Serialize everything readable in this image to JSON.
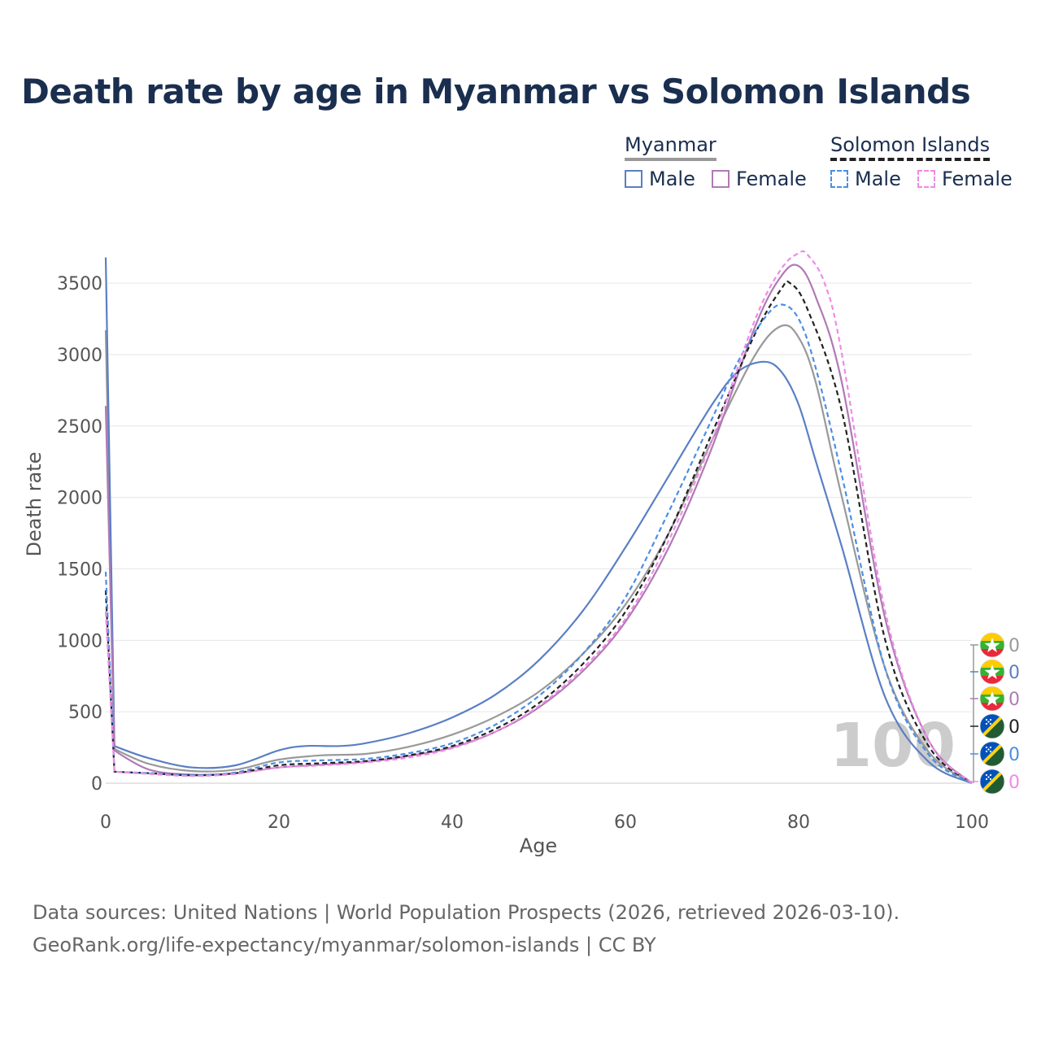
{
  "chart_data": {
    "type": "line",
    "title": "Death rate by age in Myanmar vs Solomon Islands",
    "xlabel": "Age",
    "ylabel": "Death rate",
    "xlim": [
      0,
      100
    ],
    "ylim": [
      0,
      3700
    ],
    "xticks": [
      0,
      20,
      40,
      60,
      80,
      100
    ],
    "yticks": [
      0,
      500,
      1000,
      1500,
      2000,
      2500,
      3000,
      3500
    ],
    "grid": true,
    "watermark": "100",
    "legend": {
      "groups": [
        {
          "title": "Myanmar",
          "color": "#999999",
          "dash": "solid",
          "items": [
            {
              "label": "Male",
              "color": "#5a7fc4",
              "dash": "solid"
            },
            {
              "label": "Female",
              "color": "#b07ab5",
              "dash": "solid"
            }
          ]
        },
        {
          "title": "Solomon Islands",
          "color": "#222222",
          "dash": "dashed",
          "items": [
            {
              "label": "Male",
              "color": "#4a8ee6",
              "dash": "dashed"
            },
            {
              "label": "Female",
              "color": "#f08ae6",
              "dash": "dashed"
            }
          ]
        }
      ]
    },
    "series": [
      {
        "name": "Myanmar Total",
        "color": "#999999",
        "dash": "solid",
        "x": [
          0,
          1,
          5,
          10,
          15,
          20,
          25,
          30,
          35,
          40,
          45,
          50,
          55,
          60,
          65,
          70,
          75,
          78,
          80,
          82,
          85,
          90,
          95,
          100
        ],
        "y": [
          3170,
          240,
          135,
          85,
          95,
          165,
          195,
          205,
          255,
          340,
          465,
          640,
          900,
          1250,
          1750,
          2400,
          3000,
          3200,
          3120,
          2800,
          2000,
          800,
          220,
          0
        ]
      },
      {
        "name": "Myanmar Male",
        "color": "#5a7fc4",
        "dash": "solid",
        "x": [
          0,
          1,
          5,
          10,
          15,
          20,
          23,
          27,
          30,
          35,
          40,
          45,
          50,
          55,
          60,
          65,
          70,
          73,
          76,
          78,
          80,
          82,
          85,
          90,
          95,
          100
        ],
        "y": [
          3680,
          260,
          175,
          110,
          125,
          230,
          260,
          260,
          280,
          350,
          460,
          620,
          860,
          1200,
          1650,
          2150,
          2650,
          2880,
          2950,
          2880,
          2650,
          2250,
          1650,
          600,
          150,
          0
        ]
      },
      {
        "name": "Myanmar Female",
        "color": "#b07ab5",
        "dash": "solid",
        "x": [
          0,
          1,
          5,
          10,
          15,
          20,
          25,
          30,
          35,
          40,
          45,
          50,
          55,
          60,
          65,
          70,
          75,
          78,
          80,
          82,
          85,
          90,
          95,
          100
        ],
        "y": [
          2640,
          230,
          95,
          60,
          70,
          110,
          130,
          150,
          190,
          250,
          360,
          530,
          780,
          1130,
          1650,
          2350,
          3200,
          3550,
          3620,
          3400,
          2800,
          1150,
          300,
          0
        ]
      },
      {
        "name": "Solomon Islands Total",
        "color": "#222222",
        "dash": "dashed",
        "x": [
          0,
          1,
          5,
          10,
          15,
          20,
          25,
          30,
          35,
          40,
          45,
          50,
          55,
          60,
          65,
          70,
          75,
          78,
          79,
          81,
          85,
          90,
          95,
          100
        ],
        "y": [
          1350,
          80,
          70,
          55,
          70,
          125,
          140,
          155,
          195,
          260,
          380,
          560,
          830,
          1200,
          1750,
          2450,
          3150,
          3460,
          3500,
          3320,
          2600,
          1000,
          260,
          0
        ]
      },
      {
        "name": "Solomon Islands Male",
        "color": "#4a8ee6",
        "dash": "dashed",
        "x": [
          0,
          1,
          5,
          10,
          15,
          20,
          25,
          30,
          35,
          40,
          45,
          50,
          55,
          60,
          65,
          70,
          73,
          76,
          78,
          80,
          82,
          85,
          90,
          95,
          100
        ],
        "y": [
          1480,
          80,
          70,
          55,
          75,
          145,
          160,
          170,
          210,
          280,
          410,
          610,
          900,
          1300,
          1900,
          2550,
          2950,
          3250,
          3350,
          3250,
          2900,
          2150,
          800,
          200,
          0
        ]
      },
      {
        "name": "Solomon Islands Female",
        "color": "#f08ae6",
        "dash": "dashed",
        "x": [
          0,
          1,
          5,
          10,
          15,
          20,
          25,
          30,
          35,
          40,
          45,
          50,
          55,
          60,
          65,
          70,
          75,
          78,
          80,
          81,
          83,
          85,
          90,
          95,
          100
        ],
        "y": [
          1200,
          80,
          65,
          50,
          65,
          110,
          125,
          145,
          180,
          245,
          360,
          540,
          800,
          1150,
          1700,
          2400,
          3250,
          3600,
          3710,
          3700,
          3500,
          3000,
          1200,
          300,
          0
        ]
      }
    ],
    "end_labels": [
      {
        "value": "0",
        "color": "#999999",
        "flag": "myanmar"
      },
      {
        "value": "0",
        "color": "#5a7fc4",
        "flag": "myanmar"
      },
      {
        "value": "0",
        "color": "#b07ab5",
        "flag": "myanmar"
      },
      {
        "value": "0",
        "color": "#222222",
        "flag": "solomon"
      },
      {
        "value": "0",
        "color": "#4a8ee6",
        "flag": "solomon"
      },
      {
        "value": "0",
        "color": "#f08ae6",
        "flag": "solomon"
      }
    ]
  },
  "footer": {
    "line1": "Data sources: United Nations | World Population Prospects (2026, retrieved 2026-03-10).",
    "line2": "GeoRank.org/life-expectancy/myanmar/solomon-islands | CC BY"
  }
}
